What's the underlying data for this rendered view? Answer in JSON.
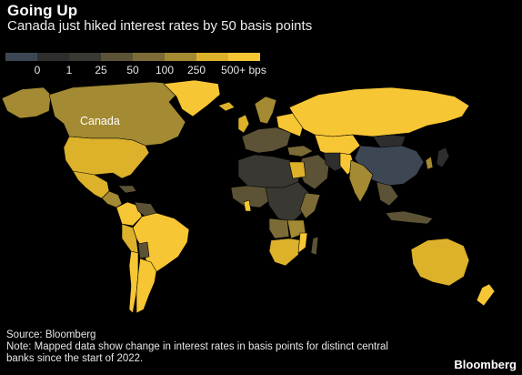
{
  "title": "Going Up",
  "subtitle": "Canada just hiked interest rates by 50 basis points",
  "legend": {
    "bins": [
      {
        "label": "",
        "color": "#3d4754"
      },
      {
        "label": "0",
        "color": "#2e2e2e"
      },
      {
        "label": "1",
        "color": "#3a3832"
      },
      {
        "label": "25",
        "color": "#5c5235"
      },
      {
        "label": "50",
        "color": "#7c6b36"
      },
      {
        "label": "100",
        "color": "#a38a33"
      },
      {
        "label": "250",
        "color": "#ddb22a"
      },
      {
        "label": "500+ bps",
        "color": "#f7c634"
      }
    ]
  },
  "map_labels": {
    "canada": "Canada"
  },
  "source": "Source: Bloomberg",
  "note": "Note: Mapped data show change in interest rates in basis points for distinct central banks since the start of 2022.",
  "brand": "Bloomberg",
  "colors": {
    "background": "#000000",
    "negative": "#3d4754",
    "zero": "#2e2e2e",
    "low": "#3a3832",
    "bps25": "#5c5235",
    "bps50": "#7c6b36",
    "bps100": "#a38a33",
    "bps250": "#ddb22a",
    "bps500": "#f7c634"
  }
}
